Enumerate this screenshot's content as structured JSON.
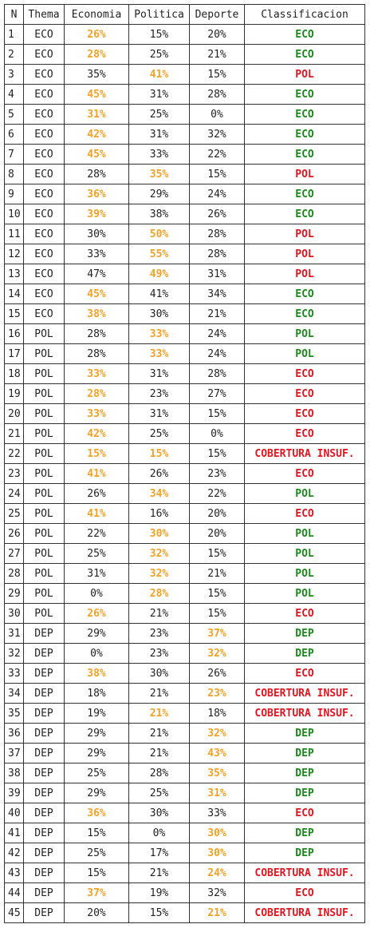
{
  "headers": [
    "N",
    "Thema",
    "Economia",
    "Politica",
    "Deporte",
    "Classificacion"
  ],
  "colors": {
    "highlight": "#f5a122",
    "match": "#1a8a1a",
    "mismatch": "#e4141e"
  },
  "rows": [
    {
      "n": "1",
      "thema": "ECO",
      "eco": "26%",
      "pol": "15%",
      "dep": "20%",
      "hi": "eco",
      "cls": "ECO"
    },
    {
      "n": "2",
      "thema": "ECO",
      "eco": "28%",
      "pol": "25%",
      "dep": "21%",
      "hi": "eco",
      "cls": "ECO"
    },
    {
      "n": "3",
      "thema": "ECO",
      "eco": "35%",
      "pol": "41%",
      "dep": "15%",
      "hi": "pol",
      "cls": "POL"
    },
    {
      "n": "4",
      "thema": "ECO",
      "eco": "45%",
      "pol": "31%",
      "dep": "28%",
      "hi": "eco",
      "cls": "ECO"
    },
    {
      "n": "5",
      "thema": "ECO",
      "eco": "31%",
      "pol": "25%",
      "dep": "0%",
      "hi": "eco",
      "cls": "ECO"
    },
    {
      "n": "6",
      "thema": "ECO",
      "eco": "42%",
      "pol": "31%",
      "dep": "32%",
      "hi": "eco",
      "cls": "ECO"
    },
    {
      "n": "7",
      "thema": "ECO",
      "eco": "45%",
      "pol": "33%",
      "dep": "22%",
      "hi": "eco",
      "cls": "ECO"
    },
    {
      "n": "8",
      "thema": "ECO",
      "eco": "28%",
      "pol": "35%",
      "dep": "15%",
      "hi": "pol",
      "cls": "POL"
    },
    {
      "n": "9",
      "thema": "ECO",
      "eco": "36%",
      "pol": "29%",
      "dep": "24%",
      "hi": "eco",
      "cls": "ECO"
    },
    {
      "n": "10",
      "thema": "ECO",
      "eco": "39%",
      "pol": "38%",
      "dep": "26%",
      "hi": "eco",
      "cls": "ECO"
    },
    {
      "n": "11",
      "thema": "ECO",
      "eco": "30%",
      "pol": "50%",
      "dep": "28%",
      "hi": "pol",
      "cls": "POL"
    },
    {
      "n": "12",
      "thema": "ECO",
      "eco": "33%",
      "pol": "55%",
      "dep": "28%",
      "hi": "pol",
      "cls": "POL"
    },
    {
      "n": "13",
      "thema": "ECO",
      "eco": "47%",
      "pol": "49%",
      "dep": "31%",
      "hi": "pol",
      "cls": "POL"
    },
    {
      "n": "14",
      "thema": "ECO",
      "eco": "45%",
      "pol": "41%",
      "dep": "34%",
      "hi": "eco",
      "cls": "ECO"
    },
    {
      "n": "15",
      "thema": "ECO",
      "eco": "38%",
      "pol": "30%",
      "dep": "21%",
      "hi": "eco",
      "cls": "ECO"
    },
    {
      "n": "16",
      "thema": "POL",
      "eco": "28%",
      "pol": "33%",
      "dep": "24%",
      "hi": "pol",
      "cls": "POL"
    },
    {
      "n": "17",
      "thema": "POL",
      "eco": "28%",
      "pol": "33%",
      "dep": "24%",
      "hi": "pol",
      "cls": "POL"
    },
    {
      "n": "18",
      "thema": "POL",
      "eco": "33%",
      "pol": "31%",
      "dep": "28%",
      "hi": "eco",
      "cls": "ECO"
    },
    {
      "n": "19",
      "thema": "POL",
      "eco": "28%",
      "pol": "23%",
      "dep": "27%",
      "hi": "eco",
      "cls": "ECO"
    },
    {
      "n": "20",
      "thema": "POL",
      "eco": "33%",
      "pol": "31%",
      "dep": "15%",
      "hi": "eco",
      "cls": "ECO"
    },
    {
      "n": "21",
      "thema": "POL",
      "eco": "42%",
      "pol": "25%",
      "dep": "0%",
      "hi": "eco",
      "cls": "ECO"
    },
    {
      "n": "22",
      "thema": "POL",
      "eco": "15%",
      "pol": "15%",
      "dep": "15%",
      "hi": "eco,pol",
      "cls": "COBERTURA INSUF."
    },
    {
      "n": "23",
      "thema": "POL",
      "eco": "41%",
      "pol": "26%",
      "dep": "23%",
      "hi": "eco",
      "cls": "ECO"
    },
    {
      "n": "24",
      "thema": "POL",
      "eco": "26%",
      "pol": "34%",
      "dep": "22%",
      "hi": "pol",
      "cls": "POL"
    },
    {
      "n": "25",
      "thema": "POL",
      "eco": "41%",
      "pol": "16%",
      "dep": "20%",
      "hi": "eco",
      "cls": "ECO"
    },
    {
      "n": "26",
      "thema": "POL",
      "eco": "22%",
      "pol": "30%",
      "dep": "20%",
      "hi": "pol",
      "cls": "POL"
    },
    {
      "n": "27",
      "thema": "POL",
      "eco": "25%",
      "pol": "32%",
      "dep": "15%",
      "hi": "pol",
      "cls": "POL"
    },
    {
      "n": "28",
      "thema": "POL",
      "eco": "31%",
      "pol": "32%",
      "dep": "21%",
      "hi": "pol",
      "cls": "POL"
    },
    {
      "n": "29",
      "thema": "POL",
      "eco": "0%",
      "pol": "28%",
      "dep": "15%",
      "hi": "pol",
      "cls": "POL"
    },
    {
      "n": "30",
      "thema": "POL",
      "eco": "26%",
      "pol": "21%",
      "dep": "15%",
      "hi": "eco",
      "cls": "ECO"
    },
    {
      "n": "31",
      "thema": "DEP",
      "eco": "29%",
      "pol": "23%",
      "dep": "37%",
      "hi": "dep",
      "cls": "DEP"
    },
    {
      "n": "32",
      "thema": "DEP",
      "eco": "0%",
      "pol": "23%",
      "dep": "32%",
      "hi": "dep",
      "cls": "DEP"
    },
    {
      "n": "33",
      "thema": "DEP",
      "eco": "38%",
      "pol": "30%",
      "dep": "26%",
      "hi": "eco",
      "cls": "ECO"
    },
    {
      "n": "34",
      "thema": "DEP",
      "eco": "18%",
      "pol": "21%",
      "dep": "23%",
      "hi": "dep",
      "cls": "COBERTURA INSUF."
    },
    {
      "n": "35",
      "thema": "DEP",
      "eco": "19%",
      "pol": "21%",
      "dep": "18%",
      "hi": "pol",
      "cls": "COBERTURA INSUF."
    },
    {
      "n": "36",
      "thema": "DEP",
      "eco": "29%",
      "pol": "21%",
      "dep": "32%",
      "hi": "dep",
      "cls": "DEP"
    },
    {
      "n": "37",
      "thema": "DEP",
      "eco": "29%",
      "pol": "21%",
      "dep": "43%",
      "hi": "dep",
      "cls": "DEP"
    },
    {
      "n": "38",
      "thema": "DEP",
      "eco": "25%",
      "pol": "28%",
      "dep": "35%",
      "hi": "dep",
      "cls": "DEP"
    },
    {
      "n": "39",
      "thema": "DEP",
      "eco": "29%",
      "pol": "25%",
      "dep": "31%",
      "hi": "dep",
      "cls": "DEP"
    },
    {
      "n": "40",
      "thema": "DEP",
      "eco": "36%",
      "pol": "30%",
      "dep": "33%",
      "hi": "eco",
      "cls": "ECO"
    },
    {
      "n": "41",
      "thema": "DEP",
      "eco": "15%",
      "pol": "0%",
      "dep": "30%",
      "hi": "dep",
      "cls": "DEP"
    },
    {
      "n": "42",
      "thema": "DEP",
      "eco": "25%",
      "pol": "17%",
      "dep": "30%",
      "hi": "dep",
      "cls": "DEP"
    },
    {
      "n": "43",
      "thema": "DEP",
      "eco": "15%",
      "pol": "21%",
      "dep": "24%",
      "hi": "dep",
      "cls": "COBERTURA INSUF."
    },
    {
      "n": "44",
      "thema": "DEP",
      "eco": "37%",
      "pol": "19%",
      "dep": "32%",
      "hi": "eco",
      "cls": "ECO"
    },
    {
      "n": "45",
      "thema": "DEP",
      "eco": "20%",
      "pol": "15%",
      "dep": "21%",
      "hi": "dep",
      "cls": "COBERTURA INSUF."
    }
  ]
}
